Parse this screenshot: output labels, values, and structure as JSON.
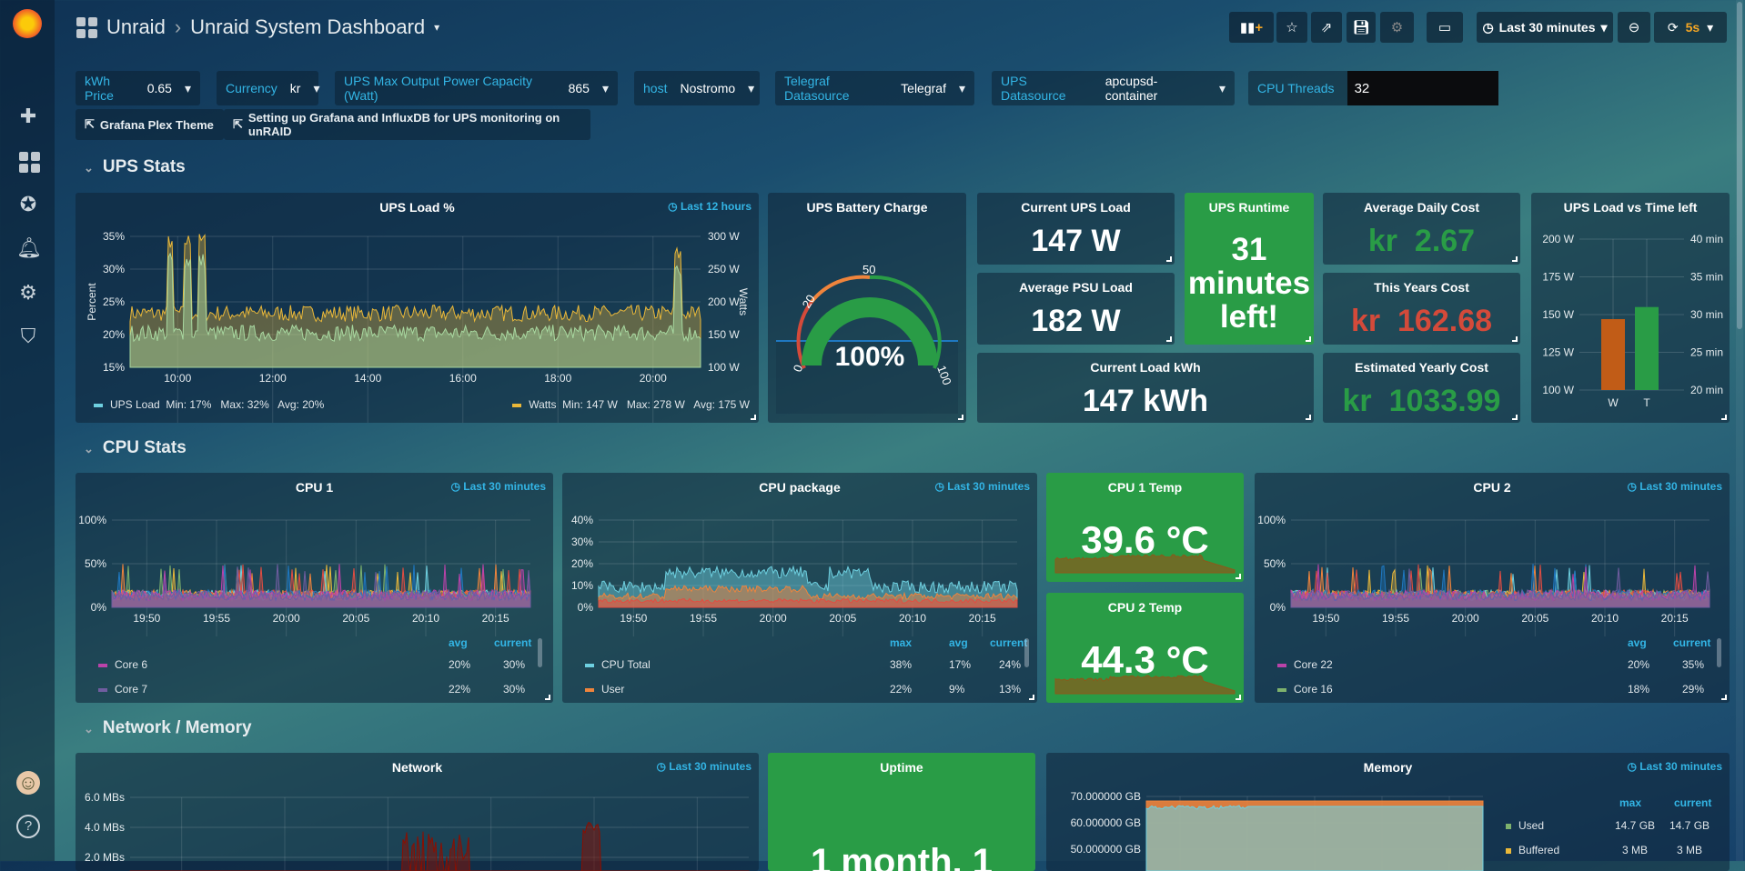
{
  "header": {
    "org": "Unraid",
    "title": "Unraid System Dashboard",
    "time_range": "Last 30 minutes",
    "refresh": "5s"
  },
  "toolbar": {
    "icons": [
      "add-panel-icon",
      "star-icon",
      "share-icon",
      "save-icon",
      "gear-icon",
      "tv-icon",
      "clock-icon",
      "zoom-out-icon",
      "refresh-icon"
    ]
  },
  "sidebar": {
    "icons": [
      "grafana-logo",
      "plus-icon",
      "dashboards-icon",
      "explore-icon",
      "bell-icon",
      "gear-icon",
      "shield-icon",
      "avatar",
      "help-icon"
    ]
  },
  "variables": [
    {
      "label": "kWh Price",
      "value": "0.65"
    },
    {
      "label": "Currency",
      "value": "kr"
    },
    {
      "label": "UPS Max Output Power Capacity (Watt)",
      "value": "865"
    },
    {
      "label": "host",
      "value": "Nostromo"
    },
    {
      "label": "Telegraf Datasource",
      "value": "Telegraf"
    },
    {
      "label": "UPS Datasource",
      "value": "apcupsd-container"
    },
    {
      "label": "CPU Threads",
      "value": "32"
    }
  ],
  "links": [
    "Grafana Plex Theme",
    "Setting up Grafana and InfluxDB for UPS monitoring on unRAID"
  ],
  "rows": [
    "UPS Stats",
    "CPU Stats",
    "Network / Memory"
  ],
  "ups": {
    "load": {
      "title": "UPS Load %",
      "range": "Last 12 hours",
      "ylabel_left": "Percent",
      "ylabel_right": "Watts",
      "yticks_left": [
        "35%",
        "30%",
        "25%",
        "20%",
        "15%"
      ],
      "yticks_right": [
        "300 W",
        "250 W",
        "200 W",
        "150 W",
        "100 W"
      ],
      "xticks": [
        "10:00",
        "12:00",
        "14:00",
        "16:00",
        "18:00",
        "20:00"
      ],
      "legend": [
        {
          "name": "UPS Load",
          "stats": "Min: 17%   Max: 32%   Avg: 20%",
          "color": "#6ed0e0"
        },
        {
          "name": "Watts",
          "stats": "Min: 147 W   Max: 278 W   Avg: 175 W",
          "color": "#eab839"
        }
      ]
    },
    "battery": {
      "title": "UPS Battery Charge",
      "value": "100%",
      "percent": 100,
      "ticks": [
        "0",
        "20",
        "50",
        "100"
      ]
    },
    "current_load": {
      "title": "Current UPS Load",
      "value": "147 W"
    },
    "avg_psu": {
      "title": "Average PSU Load",
      "value": "182 W"
    },
    "load_kwh": {
      "title": "Current Load kWh",
      "value": "147 kWh"
    },
    "runtime": {
      "title": "UPS Runtime",
      "value_lines": [
        "31",
        "minutes",
        "left!"
      ]
    },
    "avg_daily": {
      "title": "Average Daily Cost",
      "unit": "kr",
      "value": "2.67",
      "color": "#299c46"
    },
    "year_cost": {
      "title": "This Years Cost",
      "unit": "kr",
      "value": "162.68",
      "color": "#d44a3a"
    },
    "est_yearly": {
      "title": "Estimated Yearly Cost",
      "unit": "kr",
      "value": "1033.99",
      "color": "#299c46"
    },
    "load_vs_time": {
      "title": "UPS Load vs Time left",
      "yticks_left": [
        "200 W",
        "175 W",
        "150 W",
        "125 W",
        "100 W"
      ],
      "yticks_right": [
        "40 min",
        "35 min",
        "30 min",
        "25 min",
        "20 min"
      ],
      "bars": [
        {
          "label": "W",
          "value": 147,
          "unit": "W",
          "color": "#c15c17"
        },
        {
          "label": "T",
          "value": 31,
          "unit": "min",
          "color": "#299c46"
        }
      ]
    }
  },
  "cpu": {
    "cpu1": {
      "title": "CPU 1",
      "range": "Last 30 minutes",
      "yticks": [
        "100%",
        "50%",
        "0%"
      ],
      "xticks": [
        "19:50",
        "19:55",
        "20:00",
        "20:05",
        "20:10",
        "20:15"
      ],
      "headers": [
        "avg",
        "current"
      ],
      "rows": [
        {
          "name": "Core 6",
          "color": "#ba43a9",
          "avg": "20%",
          "current": "30%"
        },
        {
          "name": "Core 7",
          "color": "#705da0",
          "avg": "22%",
          "current": "30%"
        }
      ]
    },
    "package": {
      "title": "CPU package",
      "range": "Last 30 minutes",
      "yticks": [
        "40%",
        "30%",
        "20%",
        "10%",
        "0%"
      ],
      "xticks": [
        "19:50",
        "19:55",
        "20:00",
        "20:05",
        "20:10",
        "20:15"
      ],
      "headers": [
        "max",
        "avg",
        "current"
      ],
      "rows": [
        {
          "name": "CPU Total",
          "color": "#6ed0e0",
          "max": "38%",
          "avg": "17%",
          "current": "24%"
        },
        {
          "name": "User",
          "color": "#ef843c",
          "max": "22%",
          "avg": "9%",
          "current": "13%"
        }
      ]
    },
    "temp1": {
      "title": "CPU 1 Temp",
      "value": "39.6 °C"
    },
    "temp2": {
      "title": "CPU 2 Temp",
      "value": "44.3 °C"
    },
    "cpu2": {
      "title": "CPU 2",
      "range": "Last 30 minutes",
      "yticks": [
        "100%",
        "50%",
        "0%"
      ],
      "xticks": [
        "19:50",
        "19:55",
        "20:00",
        "20:05",
        "20:10",
        "20:15"
      ],
      "headers": [
        "avg",
        "current"
      ],
      "rows": [
        {
          "name": "Core 22",
          "color": "#ba43a9",
          "avg": "20%",
          "current": "35%"
        },
        {
          "name": "Core 16",
          "color": "#7eb26d",
          "avg": "18%",
          "current": "29%"
        }
      ]
    }
  },
  "net": {
    "network": {
      "title": "Network",
      "range": "Last 30 minutes",
      "yticks": [
        "6.0 MBs",
        "4.0 MBs",
        "2.0 MBs"
      ]
    },
    "uptime": {
      "title": "Uptime",
      "value": "1 month, 1"
    },
    "memory": {
      "title": "Memory",
      "range": "Last 30 minutes",
      "yticks": [
        "70.000000 GB",
        "60.000000 GB",
        "50.000000 GB"
      ],
      "headers": [
        "max",
        "current"
      ],
      "rows": [
        {
          "name": "Used",
          "color": "#7eb26d",
          "max": "14.7 GB",
          "current": "14.7 GB"
        },
        {
          "name": "Buffered",
          "color": "#eab839",
          "max": "3 MB",
          "current": "3 MB"
        }
      ]
    }
  }
}
